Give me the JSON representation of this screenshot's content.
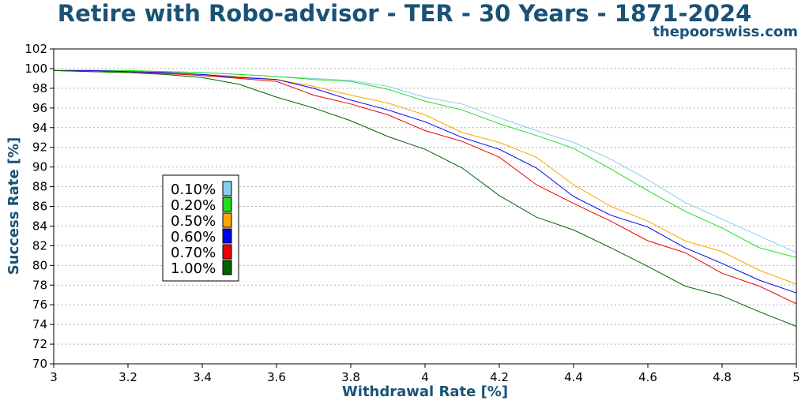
{
  "chart_data": {
    "type": "line",
    "title": "Retire with Robo-advisor - TER - 30 Years - 1871-2024",
    "subtitle": "thepoorswiss.com",
    "xlabel": "Withdrawal Rate [%]",
    "ylabel": "Success Rate [%]",
    "xlim": [
      3,
      5
    ],
    "ylim": [
      70,
      102
    ],
    "xticks": [
      "3",
      "3.2",
      "3.4",
      "3.6",
      "3.8",
      "4",
      "4.2",
      "4.4",
      "4.6",
      "4.8",
      "5"
    ],
    "yticks": [
      "70",
      "72",
      "74",
      "76",
      "78",
      "80",
      "82",
      "84",
      "86",
      "88",
      "90",
      "92",
      "94",
      "96",
      "98",
      "100",
      "102"
    ],
    "grid": "horizontal dotted",
    "legend_position": "left-middle",
    "x": [
      3.0,
      3.1,
      3.2,
      3.3,
      3.4,
      3.5,
      3.6,
      3.7,
      3.8,
      3.9,
      4.0,
      4.1,
      4.2,
      4.3,
      4.4,
      4.5,
      4.6,
      4.7,
      4.8,
      4.9,
      5.0
    ],
    "series": [
      {
        "name": "0.10%",
        "color": "#87ceeb",
        "values": [
          99.8,
          99.8,
          99.8,
          99.7,
          99.6,
          99.4,
          99.2,
          99.0,
          98.8,
          98.2,
          97.1,
          96.4,
          95.0,
          93.7,
          92.5,
          90.8,
          88.7,
          86.4,
          84.7,
          83.0,
          81.3
        ]
      },
      {
        "name": "0.20%",
        "color": "#22dd22",
        "values": [
          99.8,
          99.8,
          99.8,
          99.7,
          99.6,
          99.4,
          99.2,
          98.9,
          98.7,
          97.9,
          96.7,
          95.8,
          94.4,
          93.2,
          91.9,
          89.8,
          87.6,
          85.5,
          83.8,
          81.8,
          80.8
        ]
      },
      {
        "name": "0.50%",
        "color": "#ffa500",
        "values": [
          99.8,
          99.8,
          99.7,
          99.6,
          99.4,
          99.2,
          98.9,
          98.2,
          97.3,
          96.5,
          95.3,
          93.5,
          92.5,
          91.0,
          88.2,
          86.0,
          84.5,
          82.5,
          81.4,
          79.5,
          78.1
        ]
      },
      {
        "name": "0.60%",
        "color": "#0000ee",
        "values": [
          99.8,
          99.8,
          99.7,
          99.6,
          99.4,
          99.1,
          98.9,
          98.0,
          96.8,
          95.8,
          94.6,
          93.0,
          91.8,
          89.9,
          87.0,
          85.1,
          83.9,
          81.8,
          80.2,
          78.5,
          77.2
        ]
      },
      {
        "name": "0.70%",
        "color": "#ee0000",
        "values": [
          99.8,
          99.7,
          99.6,
          99.5,
          99.3,
          99.0,
          98.7,
          97.3,
          96.4,
          95.3,
          93.7,
          92.6,
          91.0,
          88.2,
          86.3,
          84.5,
          82.5,
          81.3,
          79.2,
          77.9,
          76.1
        ]
      },
      {
        "name": "1.00%",
        "color": "#006400",
        "values": [
          99.8,
          99.7,
          99.6,
          99.4,
          99.1,
          98.4,
          97.1,
          96.0,
          94.7,
          93.1,
          91.8,
          89.9,
          87.1,
          84.9,
          83.6,
          81.8,
          79.9,
          77.9,
          76.9,
          75.3,
          73.8
        ]
      }
    ]
  }
}
